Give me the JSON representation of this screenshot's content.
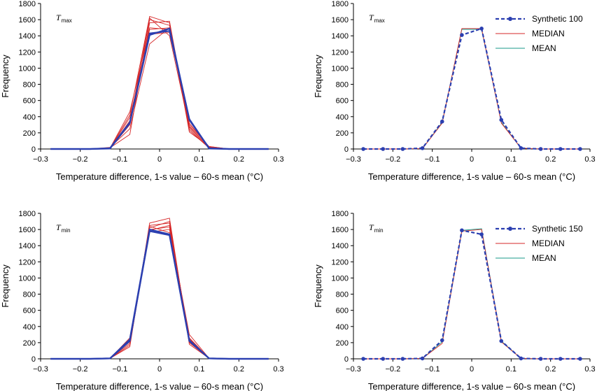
{
  "colors": {
    "synthetic": "#2b3fb0",
    "median": "#d62728",
    "mean": "#1a9a8a",
    "axis": "#000000"
  },
  "chart_data": [
    {
      "type": "line",
      "annotation": {
        "main": "T",
        "sub": "max"
      },
      "xlabel": "Temperature difference, 1-s value – 60-s mean (°C)",
      "ylabel": "Frequency",
      "xlim": [
        -0.3,
        0.3
      ],
      "ylim": [
        0,
        1800
      ],
      "xticks": [
        "−0.3",
        "−0.2",
        "−0.1",
        "0",
        "0.1",
        "0.2",
        "0.3"
      ],
      "yticks": [
        "0",
        "200",
        "400",
        "600",
        "800",
        "1000",
        "1200",
        "1400",
        "1600",
        "1800"
      ],
      "x": [
        -0.275,
        -0.225,
        -0.175,
        -0.125,
        -0.075,
        -0.025,
        0.025,
        0.075,
        0.125,
        0.175,
        0.225,
        0.275
      ],
      "series": [
        {
          "color": "median",
          "values": [
            0,
            0,
            0,
            10,
            420,
            1640,
            1560,
            210,
            30,
            0,
            0,
            0
          ]
        },
        {
          "color": "median",
          "values": [
            0,
            0,
            0,
            5,
            300,
            1600,
            1530,
            280,
            20,
            0,
            0,
            0
          ]
        },
        {
          "color": "median",
          "values": [
            0,
            0,
            0,
            15,
            180,
            1560,
            1580,
            250,
            10,
            0,
            0,
            0
          ]
        },
        {
          "color": "median",
          "values": [
            0,
            0,
            0,
            10,
            460,
            1500,
            1480,
            320,
            25,
            0,
            0,
            0
          ]
        },
        {
          "color": "median",
          "values": [
            0,
            0,
            0,
            5,
            390,
            1420,
            1440,
            350,
            15,
            0,
            0,
            0
          ]
        },
        {
          "color": "median",
          "values": [
            0,
            0,
            0,
            20,
            250,
            1300,
            1500,
            300,
            30,
            0,
            0,
            0
          ]
        },
        {
          "color": "median",
          "values": [
            0,
            0,
            0,
            8,
            350,
            1480,
            1500,
            230,
            12,
            0,
            0,
            0
          ]
        },
        {
          "color": "median",
          "values": [
            0,
            0,
            0,
            12,
            330,
            1620,
            1400,
            270,
            20,
            0,
            0,
            0
          ]
        },
        {
          "color": "synthetic",
          "values": [
            0,
            0,
            0,
            10,
            330,
            1410,
            1490,
            360,
            10,
            0,
            0,
            0
          ]
        },
        {
          "color": "synthetic",
          "values": [
            0,
            0,
            0,
            5,
            320,
            1430,
            1460,
            370,
            5,
            0,
            0,
            0
          ]
        }
      ]
    },
    {
      "type": "line",
      "annotation": {
        "main": "T",
        "sub": "max"
      },
      "xlabel": "Temperature difference, 1-s value – 60-s mean (°C)",
      "ylabel": "Frequency",
      "xlim": [
        -0.3,
        0.3
      ],
      "ylim": [
        0,
        1800
      ],
      "xticks": [
        "−0.3",
        "−0.2",
        "−0.1",
        "0",
        "0.1",
        "0.2",
        "0.3"
      ],
      "yticks": [
        "0",
        "200",
        "400",
        "600",
        "800",
        "1000",
        "1200",
        "1400",
        "1600",
        "1800"
      ],
      "legend": {
        "placement": "top-right",
        "entries": [
          {
            "label": "Synthetic 100",
            "color": "synthetic",
            "style": "dashed-marker"
          },
          {
            "label": "MEDIAN",
            "color": "median",
            "style": "solid"
          },
          {
            "label": "MEAN",
            "color": "mean",
            "style": "solid"
          }
        ]
      },
      "x": [
        -0.275,
        -0.225,
        -0.175,
        -0.125,
        -0.075,
        -0.025,
        0.025,
        0.075,
        0.125,
        0.175,
        0.225,
        0.275
      ],
      "series": [
        {
          "name": "MEAN",
          "color": "mean",
          "values": [
            0,
            0,
            0,
            5,
            330,
            1480,
            1480,
            330,
            10,
            0,
            0,
            0
          ]
        },
        {
          "name": "MEDIAN",
          "color": "median",
          "values": [
            0,
            0,
            0,
            5,
            320,
            1490,
            1490,
            320,
            10,
            0,
            0,
            0
          ]
        },
        {
          "name": "Synthetic 100",
          "color": "synthetic",
          "dashed": true,
          "markers": true,
          "values": [
            0,
            0,
            0,
            10,
            340,
            1410,
            1490,
            360,
            10,
            0,
            0,
            0
          ]
        }
      ]
    },
    {
      "type": "line",
      "annotation": {
        "main": "T",
        "sub": "min"
      },
      "xlabel": "Temperature difference, 1-s value – 60-s mean (°C)",
      "ylabel": "Frequency",
      "xlim": [
        -0.3,
        0.3
      ],
      "ylim": [
        0,
        1800
      ],
      "xticks": [
        "−0.3",
        "−0.2",
        "−0.1",
        "0",
        "0.1",
        "0.2",
        "0.3"
      ],
      "yticks": [
        "0",
        "200",
        "400",
        "600",
        "800",
        "1000",
        "1200",
        "1400",
        "1600",
        "1800"
      ],
      "x": [
        -0.275,
        -0.225,
        -0.175,
        -0.125,
        -0.075,
        -0.025,
        0.025,
        0.075,
        0.125,
        0.175,
        0.225,
        0.275
      ],
      "series": [
        {
          "color": "median",
          "values": [
            0,
            0,
            0,
            5,
            150,
            1680,
            1740,
            180,
            5,
            0,
            0,
            0
          ]
        },
        {
          "color": "median",
          "values": [
            0,
            0,
            0,
            5,
            190,
            1650,
            1680,
            230,
            5,
            0,
            0,
            0
          ]
        },
        {
          "color": "median",
          "values": [
            0,
            0,
            0,
            8,
            210,
            1600,
            1630,
            260,
            5,
            0,
            0,
            0
          ]
        },
        {
          "color": "median",
          "values": [
            0,
            0,
            0,
            5,
            260,
            1570,
            1600,
            300,
            5,
            0,
            0,
            0
          ]
        },
        {
          "color": "median",
          "values": [
            0,
            0,
            0,
            5,
            230,
            1640,
            1560,
            200,
            5,
            0,
            0,
            0
          ]
        },
        {
          "color": "median",
          "values": [
            0,
            0,
            0,
            3,
            170,
            1590,
            1650,
            250,
            5,
            0,
            0,
            0
          ]
        },
        {
          "color": "median",
          "values": [
            0,
            0,
            0,
            5,
            220,
            1620,
            1700,
            210,
            5,
            0,
            0,
            0
          ]
        },
        {
          "color": "synthetic",
          "values": [
            0,
            0,
            0,
            5,
            240,
            1600,
            1540,
            230,
            5,
            0,
            0,
            0
          ]
        },
        {
          "color": "synthetic",
          "values": [
            0,
            0,
            0,
            5,
            220,
            1580,
            1530,
            220,
            5,
            0,
            0,
            0
          ]
        }
      ]
    },
    {
      "type": "line",
      "annotation": {
        "main": "T",
        "sub": "min"
      },
      "xlabel": "Temperature difference, 1-s value – 60-s mean (°C)",
      "ylabel": "Frequency",
      "xlim": [
        -0.3,
        0.3
      ],
      "ylim": [
        0,
        1800
      ],
      "xticks": [
        "−0.3",
        "−0.2",
        "−0.1",
        "0",
        "0.1",
        "0.2",
        "0.3"
      ],
      "yticks": [
        "0",
        "200",
        "400",
        "600",
        "800",
        "1000",
        "1200",
        "1400",
        "1600",
        "1800"
      ],
      "legend": {
        "placement": "top-right",
        "entries": [
          {
            "label": "Synthetic 150",
            "color": "synthetic",
            "style": "dashed-marker"
          },
          {
            "label": "MEDIAN",
            "color": "median",
            "style": "solid"
          },
          {
            "label": "MEAN",
            "color": "mean",
            "style": "solid"
          }
        ]
      },
      "x": [
        -0.275,
        -0.225,
        -0.175,
        -0.125,
        -0.075,
        -0.025,
        0.025,
        0.075,
        0.125,
        0.175,
        0.225,
        0.275
      ],
      "series": [
        {
          "name": "MEAN",
          "color": "mean",
          "values": [
            0,
            0,
            0,
            5,
            210,
            1590,
            1610,
            220,
            5,
            0,
            0,
            0
          ]
        },
        {
          "name": "MEDIAN",
          "color": "median",
          "values": [
            0,
            0,
            0,
            5,
            190,
            1580,
            1600,
            210,
            5,
            0,
            0,
            0
          ]
        },
        {
          "name": "Synthetic 150",
          "color": "synthetic",
          "dashed": true,
          "markers": true,
          "values": [
            0,
            0,
            0,
            5,
            230,
            1590,
            1540,
            220,
            5,
            0,
            0,
            0
          ]
        }
      ]
    }
  ]
}
